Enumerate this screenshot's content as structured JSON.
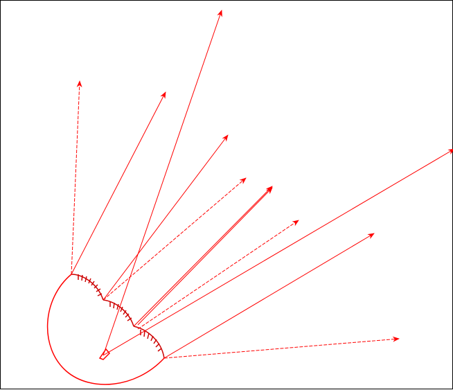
{
  "colors": {
    "background": "#ffffff",
    "frame": "#000000",
    "stroke": "#ff0000",
    "hatch": "#cc0000"
  },
  "figure": {
    "description_visible_text": ""
  }
}
